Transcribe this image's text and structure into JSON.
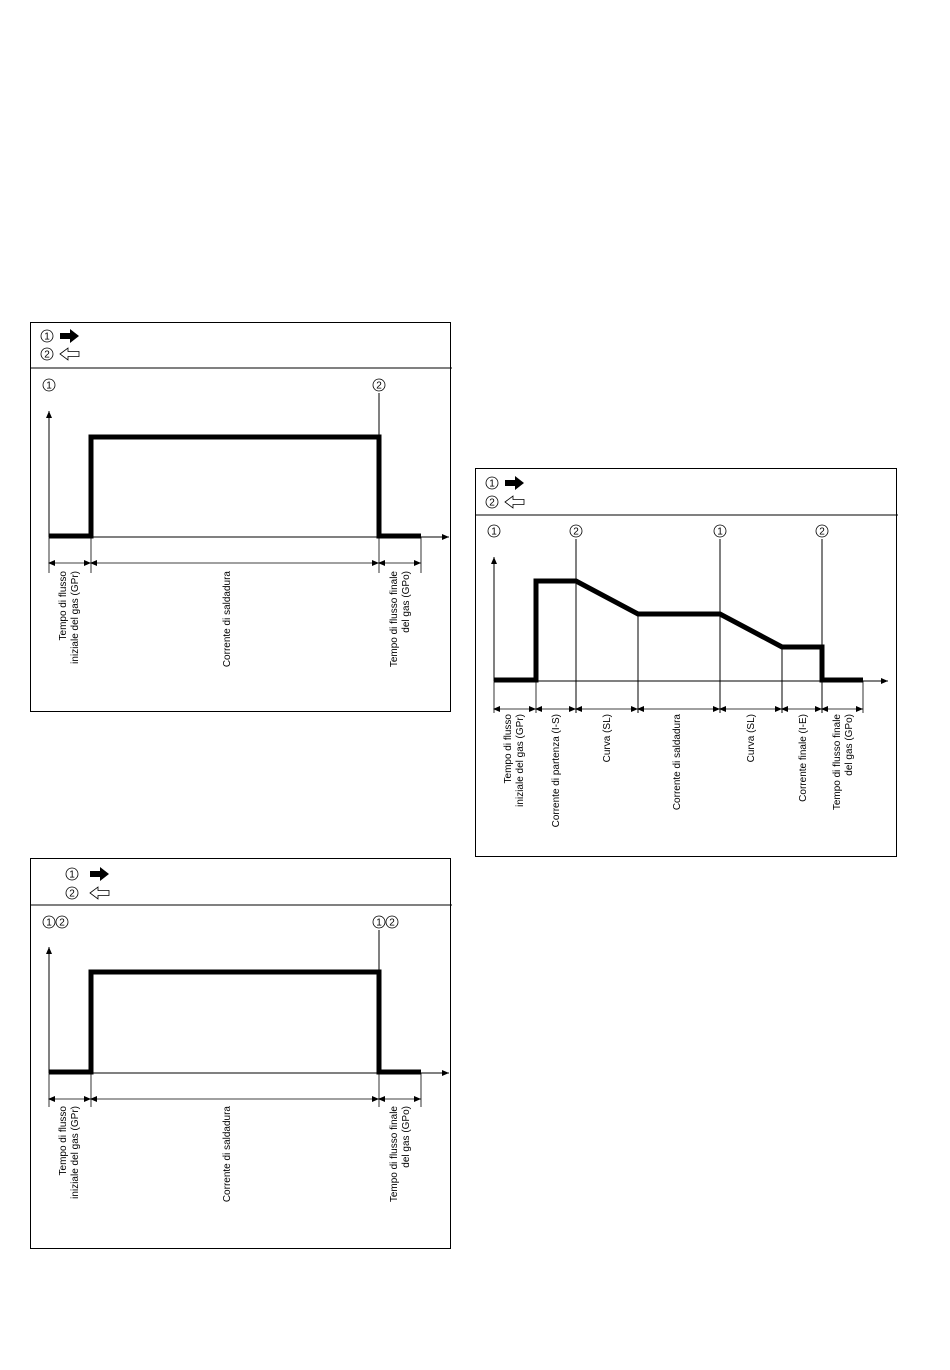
{
  "legend": {
    "marker_1": "1",
    "marker_2": "2",
    "arrow_1_icon": "solid-right-arrow-icon",
    "arrow_2_icon": "hollow-left-arrow-icon"
  },
  "diagram_a": {
    "markers": {
      "start": "1",
      "end": "2"
    },
    "labels": {
      "pre_gas_l1": "Tempo di flusso",
      "pre_gas_l2": "iniziale del gas (GPr)",
      "weld": "Corrente di saldadura",
      "post_gas_l1": "Tempo di flusso finale",
      "post_gas_l2": "del gas (GPo)"
    }
  },
  "diagram_b": {
    "markers": {
      "start_a": "1",
      "start_b": "2",
      "end_a": "1",
      "end_b": "2"
    },
    "labels": {
      "pre_gas_l1": "Tempo di flusso",
      "pre_gas_l2": "iniziale del gas (GPr)",
      "weld": "Corrente di saldadura",
      "post_gas_l1": "Tempo di flusso finale",
      "post_gas_l2": "del gas (GPo)"
    }
  },
  "diagram_c": {
    "markers": {
      "m1": "1",
      "m2": "2",
      "m3": "1",
      "m4": "2"
    },
    "labels": {
      "pre_gas_l1": "Tempo di flusso",
      "pre_gas_l2": "iniziale del gas (GPr)",
      "start_current": "Corrente di partenza (I-S)",
      "slope_up": "Curva (SL)",
      "weld": "Corrente di saldadura",
      "slope_down": "Curva (SL)",
      "end_current": "Corrente finale (I-E)",
      "post_gas_l1": "Tempo di flusso finale",
      "post_gas_l2": "del gas (GPo)"
    }
  }
}
